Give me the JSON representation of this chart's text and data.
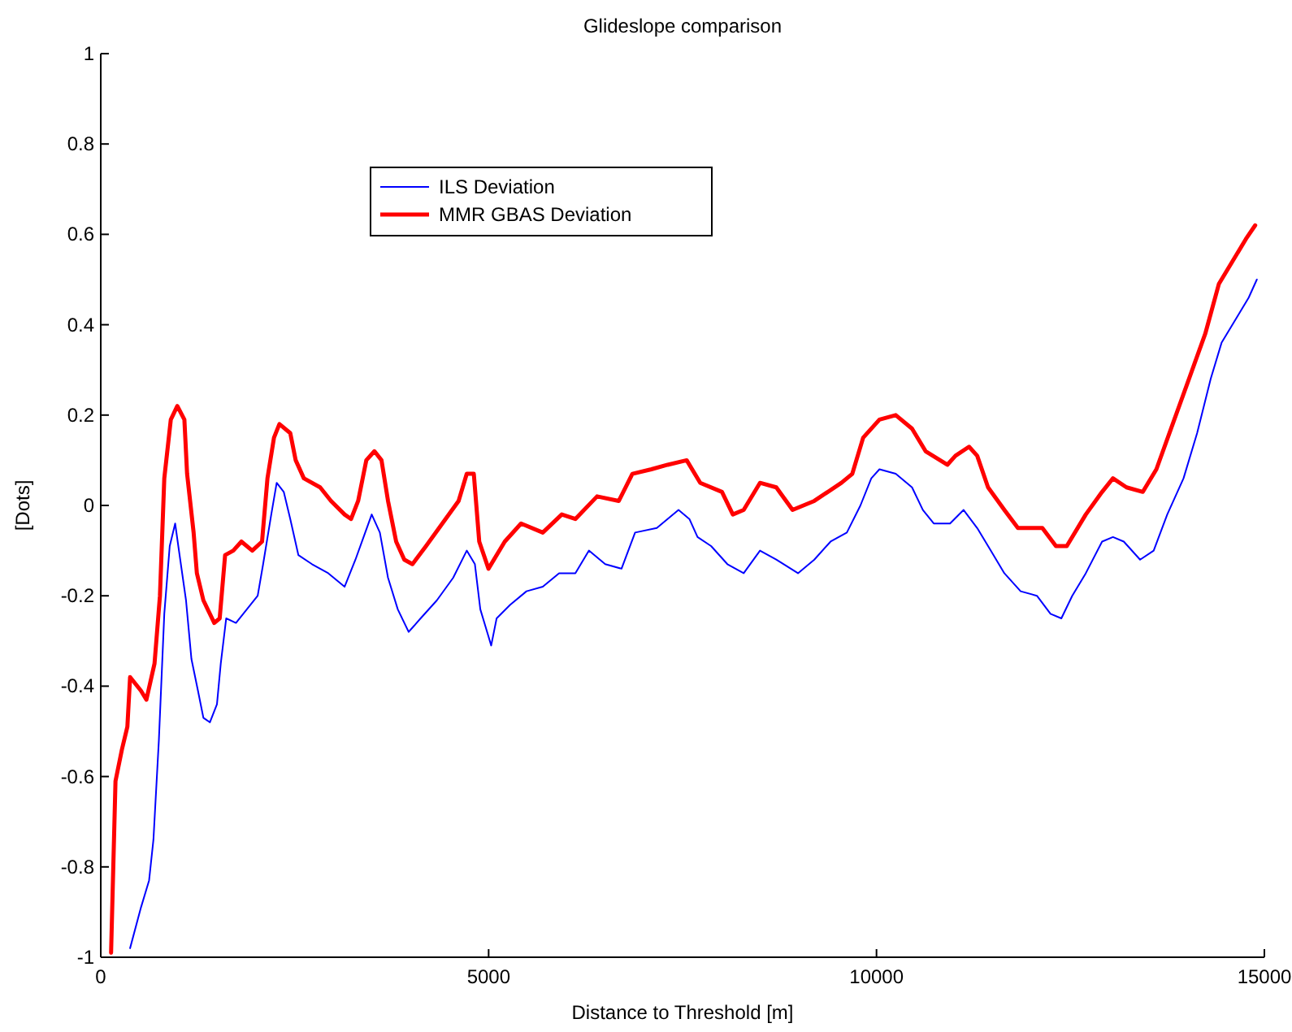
{
  "chart_data": {
    "type": "line",
    "title": "Glideslope comparison",
    "xlabel": "Distance to Threshold [m]",
    "ylabel": "[Dots]",
    "xlim": [
      0,
      15000
    ],
    "ylim": [
      -1,
      1
    ],
    "xticks": [
      0,
      5000,
      10000,
      15000
    ],
    "yticks": [
      -1,
      -0.8,
      -0.6,
      -0.4,
      -0.2,
      0,
      0.2,
      0.4,
      0.6,
      0.8,
      1
    ],
    "grid": false,
    "legend": "top left",
    "marker": "none",
    "line_style": "solid",
    "series": [
      {
        "name": "ILS Deviation",
        "color": "#0000ff",
        "x": [
          378,
          518,
          623,
          679,
          749,
          819,
          889,
          959,
          1008,
          1099,
          1169,
          1253,
          1323,
          1407,
          1498,
          1547,
          1617,
          1743,
          1883,
          2023,
          2093,
          2198,
          2268,
          2359,
          2443,
          2548,
          2723,
          2933,
          3143,
          3283,
          3388,
          3493,
          3598,
          3703,
          3829,
          3969,
          4123,
          4333,
          4543,
          4718,
          4823,
          4893,
          4998,
          5033,
          5103,
          5278,
          5488,
          5698,
          5908,
          6118,
          6293,
          6503,
          6713,
          6888,
          7168,
          7448,
          7588,
          7693,
          7868,
          8078,
          8288,
          8498,
          8708,
          8988,
          9198,
          9408,
          9618,
          9793,
          9933,
          10038,
          10248,
          10458,
          10598,
          10738,
          10948,
          11123,
          11298,
          11473,
          11648,
          11858,
          12068,
          12243,
          12383,
          12523,
          12698,
          12908,
          13048,
          13188,
          13398,
          13573,
          13748,
          13958,
          14133,
          14308,
          14448,
          14658,
          14798,
          14903
        ],
        "values": [
          -0.98,
          -0.89,
          -0.83,
          -0.74,
          -0.52,
          -0.24,
          -0.09,
          -0.04,
          -0.1,
          -0.21,
          -0.34,
          -0.41,
          -0.47,
          -0.48,
          -0.44,
          -0.35,
          -0.25,
          -0.26,
          -0.23,
          -0.2,
          -0.13,
          -0.02,
          0.05,
          0.03,
          -0.03,
          -0.11,
          -0.13,
          -0.15,
          -0.18,
          -0.12,
          -0.07,
          -0.02,
          -0.06,
          -0.16,
          -0.23,
          -0.28,
          -0.25,
          -0.21,
          -0.16,
          -0.1,
          -0.13,
          -0.23,
          -0.29,
          -0.31,
          -0.25,
          -0.22,
          -0.19,
          -0.18,
          -0.15,
          -0.15,
          -0.1,
          -0.13,
          -0.14,
          -0.06,
          -0.05,
          -0.01,
          -0.03,
          -0.07,
          -0.09,
          -0.13,
          -0.15,
          -0.1,
          -0.12,
          -0.15,
          -0.12,
          -0.08,
          -0.06,
          0.0,
          0.06,
          0.08,
          0.07,
          0.04,
          -0.01,
          -0.04,
          -0.04,
          -0.01,
          -0.05,
          -0.1,
          -0.15,
          -0.19,
          -0.2,
          -0.24,
          -0.25,
          -0.2,
          -0.15,
          -0.08,
          -0.07,
          -0.08,
          -0.12,
          -0.1,
          -0.02,
          0.06,
          0.16,
          0.28,
          0.36,
          0.42,
          0.46,
          0.5
        ]
      },
      {
        "name": "MMR GBAS Deviation",
        "color": "#ff0000",
        "x": [
          133,
          190,
          273,
          343,
          378,
          518,
          588,
          693,
          763,
          819,
          903,
          987,
          1078,
          1113,
          1197,
          1239,
          1323,
          1463,
          1533,
          1603,
          1708,
          1813,
          1953,
          2079,
          2149,
          2233,
          2303,
          2443,
          2513,
          2618,
          2828,
          2968,
          3143,
          3227,
          3318,
          3423,
          3528,
          3619,
          3703,
          3808,
          3913,
          4018,
          4193,
          4403,
          4613,
          4718,
          4809,
          4879,
          4998,
          5208,
          5418,
          5698,
          5943,
          6118,
          6398,
          6678,
          6853,
          7098,
          7308,
          7553,
          7728,
          8008,
          8148,
          8288,
          8498,
          8708,
          8918,
          9198,
          9548,
          9688,
          9828,
          10038,
          10248,
          10458,
          10633,
          10913,
          11018,
          11193,
          11298,
          11438,
          11648,
          11823,
          12138,
          12313,
          12453,
          12698,
          12908,
          13048,
          13223,
          13433,
          13608,
          13818,
          14028,
          14238,
          14413,
          14588,
          14763,
          14882
        ],
        "values": [
          -0.99,
          -0.61,
          -0.54,
          -0.49,
          -0.38,
          -0.41,
          -0.43,
          -0.35,
          -0.2,
          0.06,
          0.19,
          0.22,
          0.19,
          0.07,
          -0.06,
          -0.15,
          -0.21,
          -0.26,
          -0.25,
          -0.11,
          -0.1,
          -0.08,
          -0.1,
          -0.08,
          0.06,
          0.15,
          0.18,
          0.16,
          0.1,
          0.06,
          0.04,
          0.01,
          -0.02,
          -0.03,
          0.01,
          0.1,
          0.12,
          0.1,
          0.01,
          -0.08,
          -0.12,
          -0.13,
          -0.09,
          -0.04,
          0.01,
          0.07,
          0.07,
          -0.08,
          -0.14,
          -0.08,
          -0.04,
          -0.06,
          -0.02,
          -0.03,
          0.02,
          0.01,
          0.07,
          0.08,
          0.09,
          0.1,
          0.05,
          0.03,
          -0.02,
          -0.01,
          0.05,
          0.04,
          -0.01,
          0.01,
          0.05,
          0.07,
          0.15,
          0.19,
          0.2,
          0.17,
          0.12,
          0.09,
          0.11,
          0.13,
          0.11,
          0.04,
          -0.01,
          -0.05,
          -0.05,
          -0.09,
          -0.09,
          -0.02,
          0.03,
          0.06,
          0.04,
          0.03,
          0.08,
          0.18,
          0.28,
          0.38,
          0.49,
          0.54,
          0.59,
          0.62
        ]
      }
    ]
  }
}
